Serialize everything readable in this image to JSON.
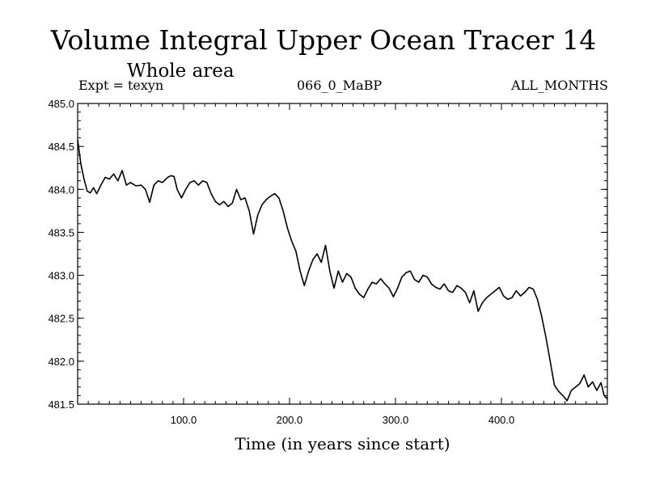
{
  "chart_data": {
    "type": "line",
    "title": "Volume Integral Upper Ocean Tracer 14",
    "subtitle": "Whole area",
    "annotations": {
      "left": "Expt = texyn",
      "center": "066_0_MaBP",
      "right": "ALL_MONTHS"
    },
    "xlabel": "Time (in years since start)",
    "ylabel": "",
    "xlim": [
      0,
      500
    ],
    "ylim": [
      481.5,
      485.0
    ],
    "x_ticks": [
      100,
      200,
      300,
      400
    ],
    "x_tick_labels": [
      "100.0",
      "200.0",
      "300.0",
      "400.0"
    ],
    "y_ticks": [
      481.5,
      482.0,
      482.5,
      483.0,
      483.5,
      484.0,
      484.5,
      485.0
    ],
    "y_tick_labels": [
      "481.5",
      "482.0",
      "482.5",
      "483.0",
      "483.5",
      "484.0",
      "484.5",
      "485.0"
    ],
    "grid": false,
    "series": [
      {
        "x": [
          0,
          3,
          6,
          9,
          12,
          15,
          18,
          22,
          26,
          30,
          34,
          38,
          42,
          46,
          50,
          55,
          60,
          64,
          68,
          72,
          76,
          80,
          85,
          88,
          91,
          94,
          98,
          102,
          106,
          110,
          114,
          118,
          122,
          126,
          130,
          134,
          138,
          142,
          146,
          150,
          154,
          158,
          162,
          166,
          170,
          174,
          178,
          182,
          186,
          190,
          194,
          198,
          202,
          206,
          210,
          214,
          218,
          222,
          226,
          230,
          234,
          238,
          242,
          246,
          250,
          254,
          258,
          262,
          266,
          270,
          274,
          278,
          282,
          286,
          290,
          294,
          298,
          302,
          306,
          310,
          314,
          318,
          322,
          326,
          330,
          334,
          338,
          342,
          346,
          350,
          354,
          358,
          362,
          366,
          370,
          374,
          378,
          382,
          386,
          390,
          394,
          398,
          402,
          406,
          410,
          414,
          418,
          422,
          426,
          430,
          434,
          438,
          442,
          446,
          450,
          454,
          458,
          462,
          466,
          470,
          474,
          478,
          482,
          486,
          490,
          494,
          497,
          500
        ],
        "y": [
          484.58,
          484.3,
          484.12,
          483.98,
          483.96,
          484.02,
          483.95,
          484.05,
          484.14,
          484.12,
          484.18,
          484.1,
          484.22,
          484.05,
          484.08,
          484.04,
          484.05,
          484.0,
          483.85,
          484.05,
          484.1,
          484.08,
          484.14,
          484.16,
          484.15,
          484.0,
          483.9,
          484.0,
          484.08,
          484.1,
          484.05,
          484.1,
          484.08,
          483.95,
          483.86,
          483.82,
          483.86,
          483.8,
          483.84,
          484.0,
          483.88,
          483.9,
          483.75,
          483.48,
          483.7,
          483.82,
          483.88,
          483.92,
          483.95,
          483.9,
          483.75,
          483.55,
          483.4,
          483.28,
          483.05,
          482.88,
          483.05,
          483.18,
          483.25,
          483.15,
          483.35,
          483.05,
          482.85,
          483.05,
          482.92,
          483.02,
          482.98,
          482.85,
          482.78,
          482.74,
          482.84,
          482.92,
          482.9,
          482.96,
          482.9,
          482.85,
          482.75,
          482.85,
          482.98,
          483.03,
          483.05,
          482.95,
          482.92,
          483.0,
          482.98,
          482.9,
          482.86,
          482.84,
          482.9,
          482.82,
          482.8,
          482.88,
          482.85,
          482.8,
          482.68,
          482.82,
          482.58,
          482.68,
          482.74,
          482.78,
          482.82,
          482.86,
          482.76,
          482.72,
          482.74,
          482.82,
          482.76,
          482.8,
          482.86,
          482.84,
          482.72,
          482.52,
          482.28,
          482.0,
          481.72,
          481.65,
          481.6,
          481.54,
          481.66,
          481.7,
          481.74,
          481.84,
          481.7,
          481.76,
          481.66,
          481.75,
          481.6,
          481.56
        ]
      }
    ]
  },
  "colors": {
    "line": "#000000",
    "axis": "#000000",
    "background": "#ffffff"
  }
}
